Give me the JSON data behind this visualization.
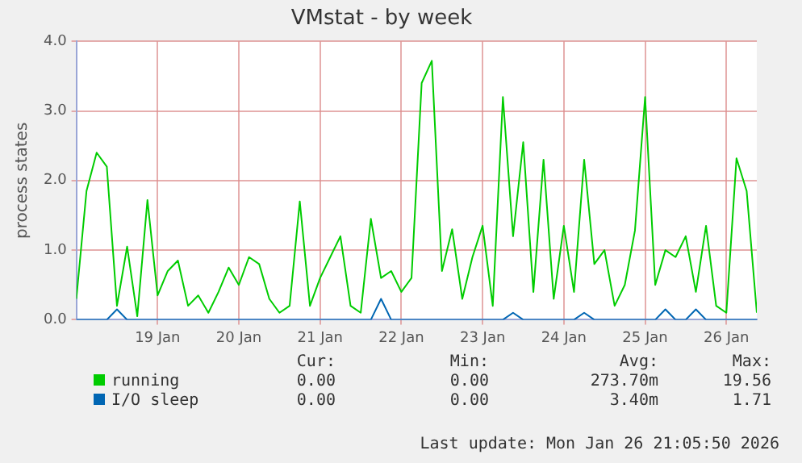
{
  "chart_data": {
    "type": "line",
    "title": "VMstat - by week",
    "ylabel": "process states",
    "x": [
      "2026-01-18T12:00",
      "2026-01-18T15:00",
      "2026-01-18T18:00",
      "2026-01-18T21:00",
      "2026-01-19T00:00",
      "2026-01-19T03:00",
      "2026-01-19T06:00",
      "2026-01-19T09:00",
      "2026-01-19T12:00",
      "2026-01-19T15:00",
      "2026-01-19T18:00",
      "2026-01-19T21:00",
      "2026-01-20T00:00",
      "2026-01-20T03:00",
      "2026-01-20T06:00",
      "2026-01-20T09:00",
      "2026-01-20T12:00",
      "2026-01-20T15:00",
      "2026-01-20T18:00",
      "2026-01-20T21:00",
      "2026-01-21T00:00",
      "2026-01-21T03:00",
      "2026-01-21T06:00",
      "2026-01-21T09:00",
      "2026-01-21T12:00",
      "2026-01-21T15:00",
      "2026-01-21T18:00",
      "2026-01-21T21:00",
      "2026-01-22T00:00",
      "2026-01-22T03:00",
      "2026-01-22T06:00",
      "2026-01-22T09:00",
      "2026-01-22T12:00",
      "2026-01-22T15:00",
      "2026-01-22T18:00",
      "2026-01-22T21:00",
      "2026-01-23T00:00",
      "2026-01-23T03:00",
      "2026-01-23T06:00",
      "2026-01-23T09:00",
      "2026-01-23T12:00",
      "2026-01-23T15:00",
      "2026-01-23T18:00",
      "2026-01-23T21:00",
      "2026-01-24T00:00",
      "2026-01-24T03:00",
      "2026-01-24T06:00",
      "2026-01-24T09:00",
      "2026-01-24T12:00",
      "2026-01-24T15:00",
      "2026-01-24T18:00",
      "2026-01-24T21:00",
      "2026-01-25T00:00",
      "2026-01-25T03:00",
      "2026-01-25T06:00",
      "2026-01-25T09:00",
      "2026-01-25T12:00",
      "2026-01-25T15:00",
      "2026-01-25T18:00",
      "2026-01-25T21:00",
      "2026-01-26T00:00",
      "2026-01-26T03:00",
      "2026-01-26T06:00",
      "2026-01-26T09:00",
      "2026-01-26T12:00",
      "2026-01-26T15:00",
      "2026-01-26T18:00",
      "2026-01-26T21:00"
    ],
    "series": [
      {
        "name": "running",
        "color": "#00cc00",
        "values": [
          0.3,
          1.85,
          2.4,
          2.2,
          0.2,
          1.05,
          0.05,
          1.72,
          0.35,
          0.7,
          0.85,
          0.2,
          0.35,
          0.1,
          0.4,
          0.75,
          0.5,
          0.9,
          0.8,
          0.3,
          0.1,
          0.2,
          1.7,
          0.2,
          0.6,
          0.9,
          1.2,
          0.2,
          0.1,
          1.45,
          0.6,
          0.7,
          0.4,
          0.6,
          3.4,
          3.72,
          0.7,
          1.3,
          0.3,
          0.9,
          1.35,
          0.2,
          3.2,
          1.2,
          2.55,
          0.4,
          2.3,
          0.3,
          1.35,
          0.4,
          2.3,
          0.8,
          1.0,
          0.2,
          0.5,
          1.28,
          3.2,
          0.5,
          1.0,
          0.9,
          1.2,
          0.4,
          1.35,
          0.2,
          0.1,
          2.32,
          1.85,
          0.1
        ]
      },
      {
        "name": "I/O sleep",
        "color": "#0066b3",
        "values": [
          0,
          0,
          0,
          0,
          0.15,
          0,
          0,
          0,
          0,
          0,
          0,
          0,
          0,
          0,
          0,
          0,
          0,
          0,
          0,
          0,
          0,
          0,
          0,
          0,
          0,
          0,
          0,
          0,
          0,
          0,
          0.3,
          0,
          0,
          0,
          0,
          0,
          0,
          0,
          0,
          0,
          0,
          0,
          0,
          0.1,
          0,
          0,
          0,
          0,
          0,
          0,
          0.1,
          0,
          0,
          0,
          0,
          0,
          0,
          0,
          0.15,
          0,
          0,
          0.15,
          0,
          0,
          0,
          0,
          0,
          0
        ]
      }
    ],
    "xlim": [
      "2026-01-18T12:00",
      "2026-01-26T21:00"
    ],
    "xticks": [
      {
        "value": "2026-01-19T12:00",
        "label": "19 Jan"
      },
      {
        "value": "2026-01-20T12:00",
        "label": "20 Jan"
      },
      {
        "value": "2026-01-21T12:00",
        "label": "21 Jan"
      },
      {
        "value": "2026-01-22T12:00",
        "label": "22 Jan"
      },
      {
        "value": "2026-01-23T12:00",
        "label": "23 Jan"
      },
      {
        "value": "2026-01-24T12:00",
        "label": "24 Jan"
      },
      {
        "value": "2026-01-25T12:00",
        "label": "25 Jan"
      },
      {
        "value": "2026-01-26T12:00",
        "label": "26 Jan"
      }
    ],
    "ylim": [
      0,
      4
    ],
    "yticks": [
      {
        "value": 0,
        "label": "0.0"
      },
      {
        "value": 1,
        "label": "1.0"
      },
      {
        "value": 2,
        "label": "2.0"
      },
      {
        "value": 3,
        "label": "3.0"
      },
      {
        "value": 4,
        "label": "4.0"
      }
    ],
    "grid": true,
    "legend": "bottom left",
    "marker": "none",
    "line_style": "solid",
    "annotations": [
      "Cur:",
      "Min:",
      "Avg:",
      "Max:",
      "0.00",
      "0.00",
      "273.70m",
      "19.56",
      "0.00",
      "0.00",
      "3.40m",
      "1.71",
      "Last update: Mon Jan 26 21:05:50 2026"
    ]
  }
}
